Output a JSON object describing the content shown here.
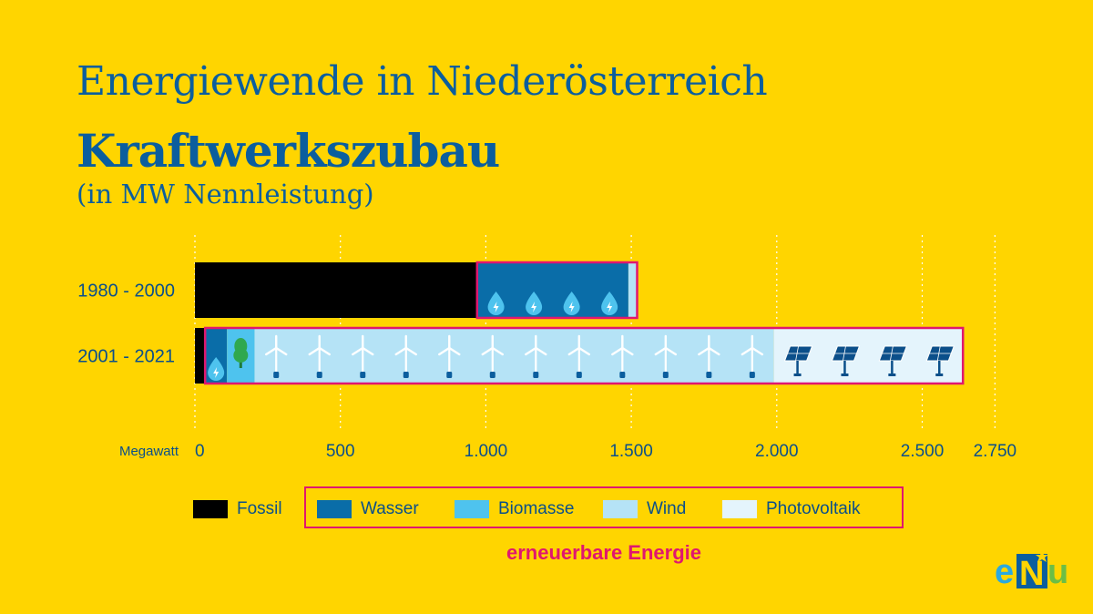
{
  "header": {
    "title": "Energiewende in Niederösterreich",
    "subtitle": "Kraftwerkszubau",
    "unit_note": "(in MW Nennleistung)"
  },
  "colors": {
    "background": "#FFD500",
    "fossil": "#000000",
    "wasser": "#0A6DA8",
    "biomasse": "#4EC3EE",
    "wind": "#B5E3F6",
    "photovoltaik": "#E4F4FC",
    "renewable_border": "#E0176F",
    "text": "#0B4F8A"
  },
  "chart_data": {
    "type": "bar",
    "orientation": "horizontal",
    "stacked": true,
    "title": "Kraftwerkszubau",
    "xlabel": "Megawatt",
    "categories": [
      "1980 - 2000",
      "2001 - 2021"
    ],
    "series": [
      {
        "name": "Fossil",
        "values": [
          970,
          35
        ]
      },
      {
        "name": "Wasser",
        "values": [
          520,
          75
        ]
      },
      {
        "name": "Biomasse",
        "values": [
          0,
          95
        ]
      },
      {
        "name": "Wind",
        "values": [
          30,
          1785
        ]
      },
      {
        "name": "Photovoltaik",
        "values": [
          0,
          650
        ]
      }
    ],
    "xlim": [
      0,
      2750
    ],
    "xticks": [
      0,
      500,
      1000,
      1500,
      2000,
      2500,
      2750
    ],
    "xtick_labels": [
      "0",
      "500",
      "1.000",
      "1.500",
      "2.000",
      "2.500",
      "2.750"
    ],
    "grid": true,
    "icons": {
      "Wasser": "water-drop-icon",
      "Biomasse": "tree-icon",
      "Wind": "wind-turbine-icon",
      "Photovoltaik": "solar-panel-icon"
    },
    "icon_counts": [
      {
        "wasser": 4,
        "biomasse": 0,
        "wind": 0,
        "photovoltaik": 0
      },
      {
        "wasser": 1,
        "biomasse": 1,
        "wind": 12,
        "photovoltaik": 4
      }
    ]
  },
  "legend": {
    "items": [
      {
        "key": "fossil",
        "label": "Fossil"
      },
      {
        "key": "wasser",
        "label": "Wasser"
      },
      {
        "key": "biomasse",
        "label": "Biomasse"
      },
      {
        "key": "wind",
        "label": "Wind"
      },
      {
        "key": "photovoltaik",
        "label": "Photovoltaik"
      }
    ],
    "renewable_caption": "erneuerbare Energie"
  },
  "logo": {
    "text": "eNu"
  }
}
